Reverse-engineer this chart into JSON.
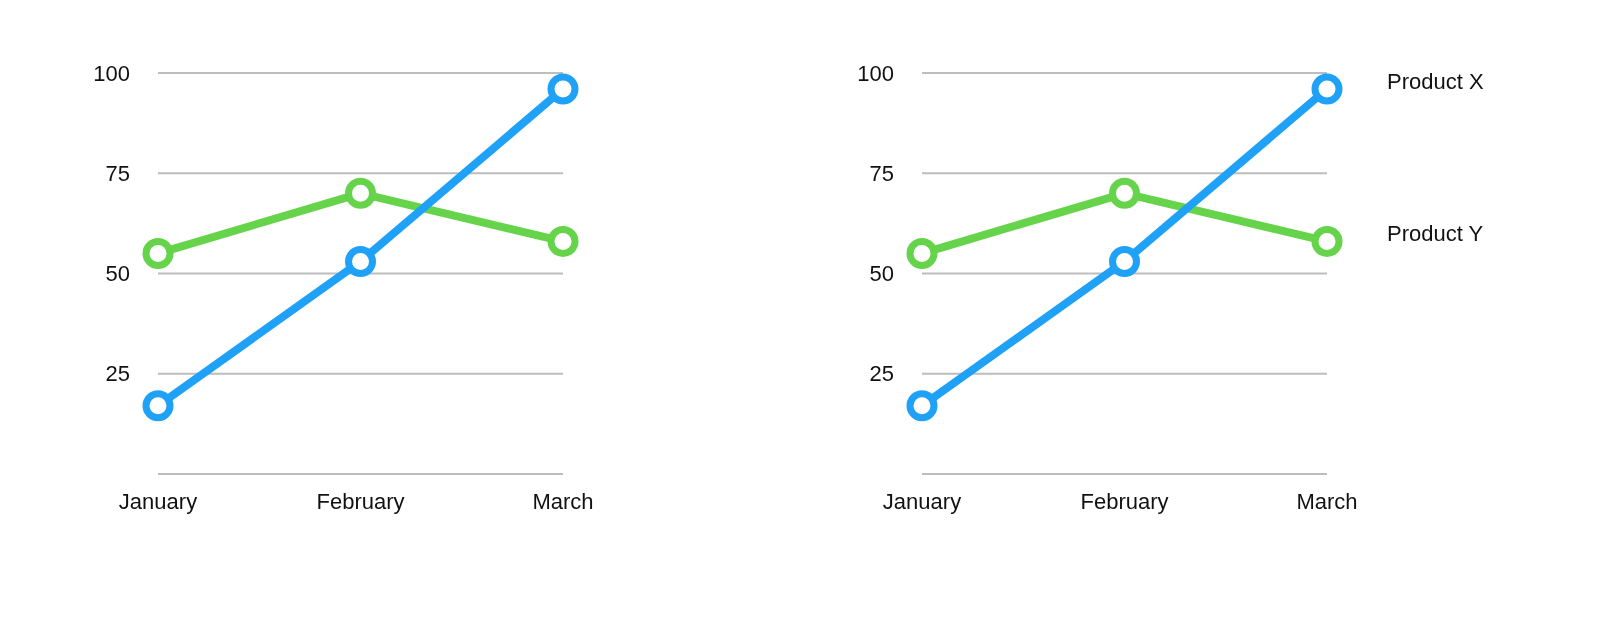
{
  "chart_data": [
    {
      "type": "line",
      "categories": [
        "January",
        "February",
        "March"
      ],
      "ylim": [
        0,
        100
      ],
      "yticks": [
        {
          "value": 0,
          "label": null
        },
        25,
        50,
        75,
        100
      ],
      "grid": "y",
      "marker": "circle",
      "line_style": "solid",
      "series": [
        {
          "color": "#66d44a",
          "values": [
            55,
            70,
            58
          ]
        },
        {
          "color": "#1ea1f7",
          "values": [
            17,
            53,
            96
          ]
        }
      ]
    },
    {
      "type": "line",
      "categories": [
        "January",
        "February",
        "March"
      ],
      "ylim": [
        0,
        100
      ],
      "yticks": [
        {
          "value": 0,
          "label": null
        },
        25,
        50,
        75,
        100
      ],
      "grid": "y",
      "marker": "circle",
      "line_style": "solid",
      "series": [
        {
          "name": "Product Y",
          "color": "#66d44a",
          "values": [
            55,
            70,
            58
          ]
        },
        {
          "name": "Product X",
          "color": "#1ea1f7",
          "values": [
            17,
            53,
            96
          ]
        }
      ]
    }
  ]
}
